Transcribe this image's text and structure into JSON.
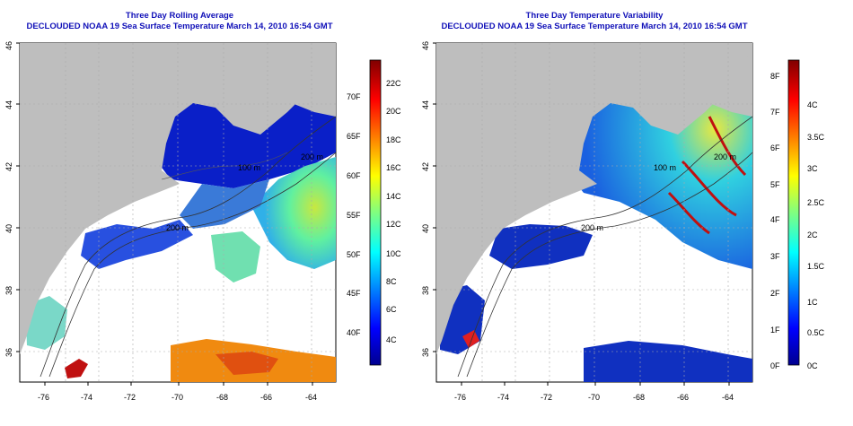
{
  "left_panel": {
    "title_line1": "Three Day Rolling Average",
    "title_line2": "DECLOUDED NOAA 19 Sea Surface Temperature March 14, 2010 16:54 GMT",
    "x_ticks": [
      "-76",
      "-74",
      "-72",
      "-70",
      "-68",
      "-66",
      "-64"
    ],
    "y_ticks": [
      "36",
      "38",
      "40",
      "42",
      "44",
      "46"
    ],
    "colorbar_f": [
      "40F",
      "45F",
      "50F",
      "55F",
      "60F",
      "65F",
      "70F"
    ],
    "colorbar_c": [
      "4C",
      "6C",
      "8C",
      "10C",
      "12C",
      "14C",
      "16C",
      "18C",
      "20C",
      "22C"
    ],
    "contour_labels": [
      "200 m",
      "100 m",
      "200 m"
    ]
  },
  "right_panel": {
    "title_line1": "Three Day Temperature Variability",
    "title_line2": "DECLOUDED NOAA 19 Sea Surface Temperature March 14, 2010 16:54 GMT",
    "x_ticks": [
      "-76",
      "-74",
      "-72",
      "-70",
      "-68",
      "-66",
      "-64"
    ],
    "y_ticks": [
      "36",
      "38",
      "40",
      "42",
      "44",
      "46"
    ],
    "colorbar_f": [
      "0F",
      "1F",
      "2F",
      "3F",
      "4F",
      "5F",
      "6F",
      "7F",
      "8F"
    ],
    "colorbar_c": [
      "0C",
      "0.5C",
      "1C",
      "1.5C",
      "2C",
      "2.5C",
      "3C",
      "3.5C",
      "4C"
    ],
    "contour_labels": [
      "200 m",
      "100 m",
      "200 m"
    ]
  },
  "colors": {
    "title": "#1010b8",
    "land": "#bebebe",
    "cold": "#0a1fc8",
    "warm": "#f08a10",
    "grid": "#aaaaaa"
  }
}
